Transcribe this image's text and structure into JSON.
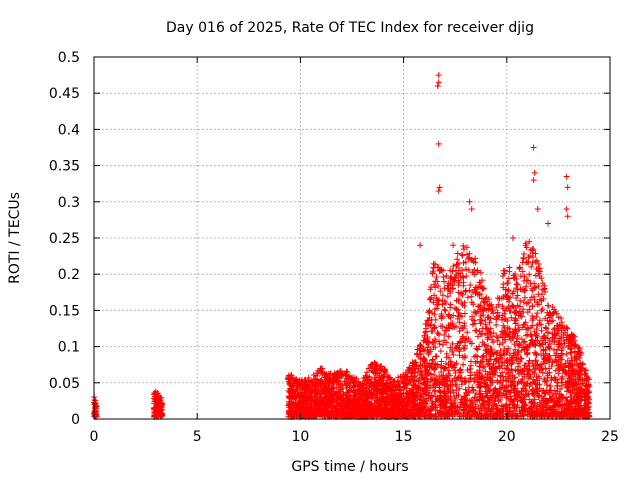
{
  "chart_data": {
    "type": "scatter",
    "title": "Day 016 of 2025, Rate Of TEC Index for receiver djig",
    "xlabel": "GPS time / hours",
    "ylabel": "ROTI / TECUs",
    "xlim": [
      0,
      25
    ],
    "ylim": [
      0,
      0.5
    ],
    "xticks": [
      0,
      5,
      10,
      15,
      20,
      25
    ],
    "yticks": [
      0,
      0.05,
      0.1,
      0.15,
      0.2,
      0.25,
      0.3,
      0.35,
      0.4,
      0.45,
      0.5
    ],
    "grid": true,
    "marker": "+",
    "color": "#ff0000",
    "series": [
      {
        "name": "ROTI",
        "envelope": [
          [
            0.0,
            0.03
          ],
          [
            0.1,
            0.02
          ],
          [
            3.0,
            0.035
          ],
          [
            3.2,
            0.03
          ],
          [
            9.5,
            0.06
          ],
          [
            10.0,
            0.05
          ],
          [
            10.5,
            0.055
          ],
          [
            11.0,
            0.07
          ],
          [
            11.5,
            0.06
          ],
          [
            12.0,
            0.065
          ],
          [
            12.5,
            0.06
          ],
          [
            13.0,
            0.05
          ],
          [
            13.5,
            0.08
          ],
          [
            14.0,
            0.07
          ],
          [
            14.5,
            0.05
          ],
          [
            15.0,
            0.06
          ],
          [
            15.5,
            0.08
          ],
          [
            16.0,
            0.12
          ],
          [
            16.5,
            0.22
          ],
          [
            17.0,
            0.2
          ],
          [
            17.5,
            0.22
          ],
          [
            18.0,
            0.25
          ],
          [
            18.5,
            0.22
          ],
          [
            19.0,
            0.18
          ],
          [
            19.5,
            0.16
          ],
          [
            20.0,
            0.22
          ],
          [
            20.5,
            0.2
          ],
          [
            21.0,
            0.25
          ],
          [
            21.5,
            0.22
          ],
          [
            22.0,
            0.16
          ],
          [
            22.5,
            0.14
          ],
          [
            23.0,
            0.13
          ],
          [
            23.5,
            0.1
          ],
          [
            24.0,
            0.05
          ]
        ],
        "peaks": [
          [
            16.7,
            0.475
          ],
          [
            16.7,
            0.465
          ],
          [
            16.65,
            0.46
          ],
          [
            16.7,
            0.38
          ],
          [
            16.75,
            0.32
          ],
          [
            16.7,
            0.315
          ],
          [
            18.2,
            0.3
          ],
          [
            18.3,
            0.29
          ],
          [
            21.3,
            0.375
          ],
          [
            21.35,
            0.34
          ],
          [
            21.3,
            0.33
          ],
          [
            22.9,
            0.335
          ],
          [
            22.95,
            0.32
          ],
          [
            22.9,
            0.29
          ],
          [
            22.95,
            0.28
          ],
          [
            21.5,
            0.29
          ],
          [
            20.3,
            0.25
          ],
          [
            17.4,
            0.24
          ],
          [
            15.8,
            0.24
          ],
          [
            22.0,
            0.27
          ]
        ]
      }
    ]
  }
}
